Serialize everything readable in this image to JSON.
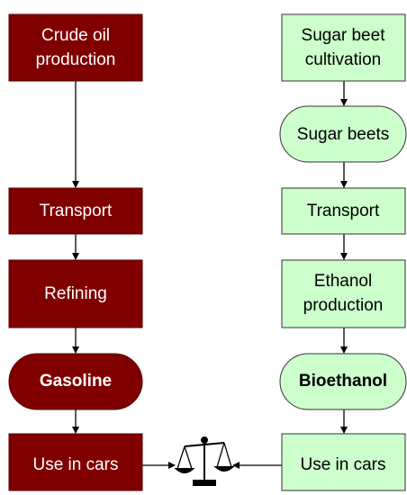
{
  "nodes": [
    {
      "lines": [
        "Crude oil",
        "production"
      ]
    },
    {
      "lines": [
        "Transport"
      ]
    },
    {
      "lines": [
        "Refining"
      ]
    },
    {
      "lines": [
        "Gasoline"
      ]
    },
    {
      "lines": [
        "Use in cars"
      ]
    },
    {
      "lines": [
        "Sugar beet",
        "cultivation"
      ]
    },
    {
      "lines": [
        "Sugar beets"
      ]
    },
    {
      "lines": [
        "Transport"
      ]
    },
    {
      "lines": [
        "Ethanol",
        "production"
      ]
    },
    {
      "lines": [
        "Bioethanol"
      ]
    },
    {
      "lines": [
        "Use in cars"
      ]
    }
  ]
}
